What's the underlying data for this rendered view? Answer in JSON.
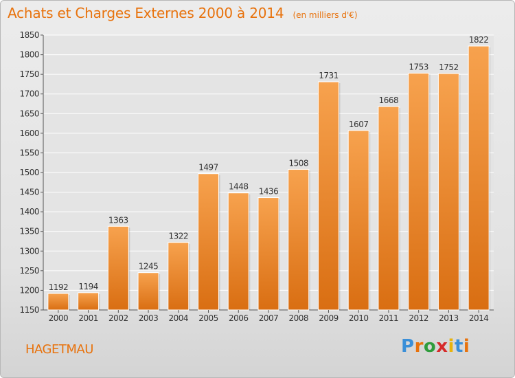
{
  "title": "Achats et Charges Externes 2000 à 2014",
  "subtitle": "(en milliers d'€)",
  "footer": {
    "city": "HAGETMAU"
  },
  "logo": {
    "letters": [
      "P",
      "r",
      "o",
      "x",
      "i",
      "t",
      "i"
    ],
    "letter_colors": [
      "#3a8fd8",
      "#e8720c",
      "#2f9c3c",
      "#d62a2a",
      "#e8b30c",
      "#3a8fd8",
      "#e8720c"
    ]
  },
  "colors": {
    "bar_top": "#f7a24e",
    "bar_bottom": "#d96e12",
    "text_accent": "#e8720c",
    "axis_text": "#333333",
    "grid": "#ffffff"
  },
  "chart_data": {
    "type": "bar",
    "categories": [
      "2000",
      "2001",
      "2002",
      "2003",
      "2004",
      "2005",
      "2006",
      "2007",
      "2008",
      "2009",
      "2010",
      "2011",
      "2012",
      "2013",
      "2014"
    ],
    "values": [
      1192,
      1194,
      1363,
      1245,
      1322,
      1497,
      1448,
      1436,
      1508,
      1731,
      1607,
      1668,
      1753,
      1752,
      1822
    ],
    "ylim": [
      1150,
      1850
    ],
    "yticks": [
      1150,
      1200,
      1250,
      1300,
      1350,
      1400,
      1450,
      1500,
      1550,
      1600,
      1650,
      1700,
      1750,
      1800,
      1850
    ],
    "grid": true,
    "xlabel": "",
    "ylabel": ""
  }
}
